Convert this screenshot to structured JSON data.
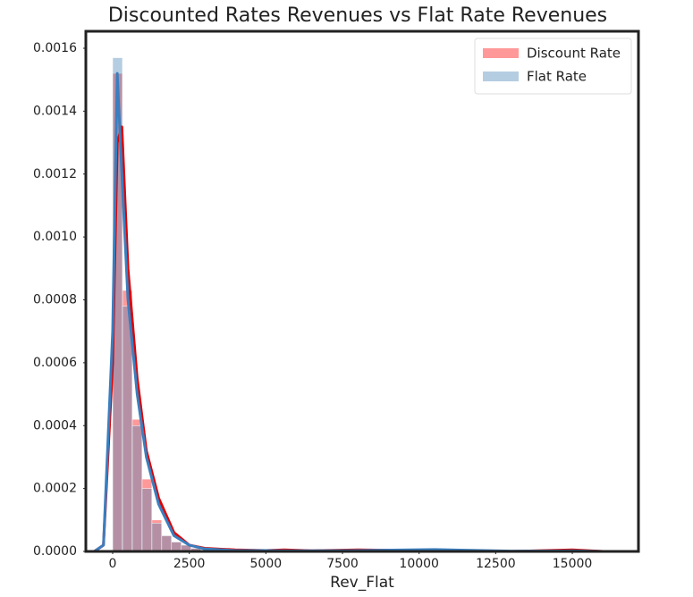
{
  "chart_data": {
    "type": "histogram",
    "title": "Discounted Rates Revenues vs Flat Rate Revenues",
    "x_label": "Rev_Flat",
    "bins": [
      0,
      320,
      640,
      960,
      1280,
      1600,
      1920,
      2240,
      2560,
      2880,
      3200
    ],
    "kde_x": [
      -600,
      -300,
      0,
      150,
      300,
      500,
      800,
      1100,
      1500,
      2000,
      2500,
      3000,
      4000,
      5000,
      5600,
      6500,
      8000,
      10500,
      13000,
      15000,
      16000
    ],
    "series": [
      {
        "name": "Discount Rate",
        "color": "#ff0000",
        "line_color": "#e00000",
        "values": [
          0.00152,
          0.00083,
          0.00042,
          0.00023,
          0.0001,
          5e-05,
          3e-05,
          2e-05,
          1e-05,
          5e-06
        ],
        "kde": [
          0,
          2e-05,
          0.0006,
          0.0013,
          0.00135,
          0.0009,
          0.00055,
          0.00032,
          0.00017,
          6e-05,
          2e-05,
          1e-05,
          5e-06,
          3e-06,
          5e-06,
          2e-06,
          5e-06,
          2e-06,
          0,
          5e-06,
          0
        ]
      },
      {
        "name": "Flat Rate",
        "color": "#4682b4",
        "line_color": "#3a7ebf",
        "values": [
          0.00157,
          0.00078,
          0.0004,
          0.0002,
          9e-05,
          5e-05,
          3e-05,
          2e-05,
          1e-05,
          5e-06
        ],
        "kde": [
          0,
          2e-05,
          0.0007,
          0.00152,
          0.0012,
          0.0008,
          0.0005,
          0.0003,
          0.00015,
          5e-05,
          2e-05,
          8e-06,
          3e-06,
          3e-06,
          2e-06,
          2e-06,
          3e-06,
          6e-06,
          1e-06,
          2e-06,
          0
        ]
      }
    ],
    "xlim": [
      -875,
      17158
    ],
    "ylim": [
      0,
      0.001654
    ],
    "xticks": [
      0,
      2500,
      5000,
      7500,
      10000,
      12500,
      15000
    ],
    "yticks": [
      {
        "value": 0,
        "label": "0.0000"
      },
      {
        "value": 0.0002,
        "label": "0.0002"
      },
      {
        "value": 0.0004,
        "label": "0.0004"
      },
      {
        "value": 0.0006,
        "label": "0.0006"
      },
      {
        "value": 0.0008,
        "label": "0.0008"
      },
      {
        "value": 0.001,
        "label": "0.0010"
      },
      {
        "value": 0.0012,
        "label": "0.0012"
      },
      {
        "value": 0.0014,
        "label": "0.0014"
      },
      {
        "value": 0.0016,
        "label": "0.0016"
      }
    ],
    "hist_opacity": 0.4,
    "legend": "upper right"
  }
}
